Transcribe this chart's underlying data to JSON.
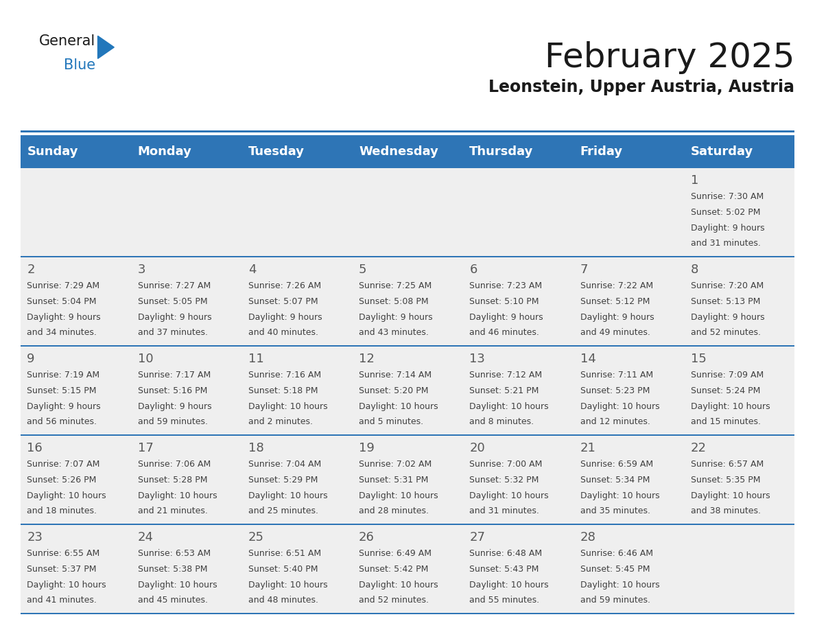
{
  "title": "February 2025",
  "subtitle": "Leonstein, Upper Austria, Austria",
  "header_bg": "#2E75B6",
  "header_text_color": "#FFFFFF",
  "day_number_color": "#595959",
  "info_text_color": "#404040",
  "row_bg": "#EFEFEF",
  "white_bg": "#FFFFFF",
  "separator_color": "#2E75B6",
  "days_of_week": [
    "Sunday",
    "Monday",
    "Tuesday",
    "Wednesday",
    "Thursday",
    "Friday",
    "Saturday"
  ],
  "calendar_data": [
    [
      null,
      null,
      null,
      null,
      null,
      null,
      {
        "day": 1,
        "sunrise": "7:30 AM",
        "sunset": "5:02 PM",
        "daylight": "9 hours and 31 minutes."
      }
    ],
    [
      {
        "day": 2,
        "sunrise": "7:29 AM",
        "sunset": "5:04 PM",
        "daylight": "9 hours and 34 minutes."
      },
      {
        "day": 3,
        "sunrise": "7:27 AM",
        "sunset": "5:05 PM",
        "daylight": "9 hours and 37 minutes."
      },
      {
        "day": 4,
        "sunrise": "7:26 AM",
        "sunset": "5:07 PM",
        "daylight": "9 hours and 40 minutes."
      },
      {
        "day": 5,
        "sunrise": "7:25 AM",
        "sunset": "5:08 PM",
        "daylight": "9 hours and 43 minutes."
      },
      {
        "day": 6,
        "sunrise": "7:23 AM",
        "sunset": "5:10 PM",
        "daylight": "9 hours and 46 minutes."
      },
      {
        "day": 7,
        "sunrise": "7:22 AM",
        "sunset": "5:12 PM",
        "daylight": "9 hours and 49 minutes."
      },
      {
        "day": 8,
        "sunrise": "7:20 AM",
        "sunset": "5:13 PM",
        "daylight": "9 hours and 52 minutes."
      }
    ],
    [
      {
        "day": 9,
        "sunrise": "7:19 AM",
        "sunset": "5:15 PM",
        "daylight": "9 hours and 56 minutes."
      },
      {
        "day": 10,
        "sunrise": "7:17 AM",
        "sunset": "5:16 PM",
        "daylight": "9 hours and 59 minutes."
      },
      {
        "day": 11,
        "sunrise": "7:16 AM",
        "sunset": "5:18 PM",
        "daylight": "10 hours and 2 minutes."
      },
      {
        "day": 12,
        "sunrise": "7:14 AM",
        "sunset": "5:20 PM",
        "daylight": "10 hours and 5 minutes."
      },
      {
        "day": 13,
        "sunrise": "7:12 AM",
        "sunset": "5:21 PM",
        "daylight": "10 hours and 8 minutes."
      },
      {
        "day": 14,
        "sunrise": "7:11 AM",
        "sunset": "5:23 PM",
        "daylight": "10 hours and 12 minutes."
      },
      {
        "day": 15,
        "sunrise": "7:09 AM",
        "sunset": "5:24 PM",
        "daylight": "10 hours and 15 minutes."
      }
    ],
    [
      {
        "day": 16,
        "sunrise": "7:07 AM",
        "sunset": "5:26 PM",
        "daylight": "10 hours and 18 minutes."
      },
      {
        "day": 17,
        "sunrise": "7:06 AM",
        "sunset": "5:28 PM",
        "daylight": "10 hours and 21 minutes."
      },
      {
        "day": 18,
        "sunrise": "7:04 AM",
        "sunset": "5:29 PM",
        "daylight": "10 hours and 25 minutes."
      },
      {
        "day": 19,
        "sunrise": "7:02 AM",
        "sunset": "5:31 PM",
        "daylight": "10 hours and 28 minutes."
      },
      {
        "day": 20,
        "sunrise": "7:00 AM",
        "sunset": "5:32 PM",
        "daylight": "10 hours and 31 minutes."
      },
      {
        "day": 21,
        "sunrise": "6:59 AM",
        "sunset": "5:34 PM",
        "daylight": "10 hours and 35 minutes."
      },
      {
        "day": 22,
        "sunrise": "6:57 AM",
        "sunset": "5:35 PM",
        "daylight": "10 hours and 38 minutes."
      }
    ],
    [
      {
        "day": 23,
        "sunrise": "6:55 AM",
        "sunset": "5:37 PM",
        "daylight": "10 hours and 41 minutes."
      },
      {
        "day": 24,
        "sunrise": "6:53 AM",
        "sunset": "5:38 PM",
        "daylight": "10 hours and 45 minutes."
      },
      {
        "day": 25,
        "sunrise": "6:51 AM",
        "sunset": "5:40 PM",
        "daylight": "10 hours and 48 minutes."
      },
      {
        "day": 26,
        "sunrise": "6:49 AM",
        "sunset": "5:42 PM",
        "daylight": "10 hours and 52 minutes."
      },
      {
        "day": 27,
        "sunrise": "6:48 AM",
        "sunset": "5:43 PM",
        "daylight": "10 hours and 55 minutes."
      },
      {
        "day": 28,
        "sunrise": "6:46 AM",
        "sunset": "5:45 PM",
        "daylight": "10 hours and 59 minutes."
      },
      null
    ]
  ],
  "logo_general_color": "#1A1A1A",
  "logo_blue_color": "#2277BB",
  "logo_triangle_color": "#2277BB",
  "title_fontsize": 36,
  "subtitle_fontsize": 17,
  "header_fontsize": 13,
  "day_num_fontsize": 13,
  "info_fontsize": 9
}
